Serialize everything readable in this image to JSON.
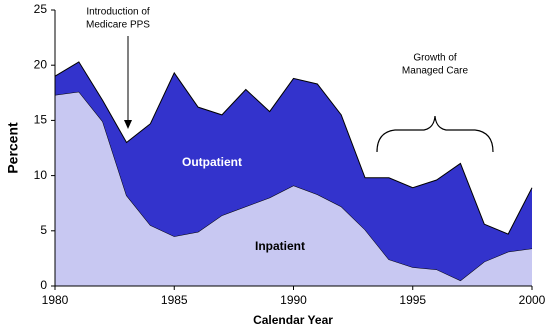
{
  "chart_data": {
    "type": "stacked-area",
    "x": [
      1980,
      1981,
      1982,
      1983,
      1984,
      1985,
      1986,
      1987,
      1988,
      1989,
      1990,
      1991,
      1992,
      1993,
      1994,
      1995,
      1996,
      1997,
      1998,
      1999,
      2000
    ],
    "series": [
      {
        "name": "Inpatient",
        "color": "#c8c8f2",
        "values": [
          17.3,
          17.6,
          14.9,
          8.2,
          5.5,
          4.5,
          4.9,
          6.4,
          7.2,
          8.0,
          9.1,
          8.3,
          7.2,
          5.1,
          2.4,
          1.7,
          1.5,
          0.5,
          2.2,
          3.1,
          3.4
        ]
      },
      {
        "name": "Outpatient",
        "color": "#3333cc",
        "values": [
          1.7,
          2.7,
          1.9,
          4.8,
          9.2,
          14.8,
          11.3,
          9.1,
          10.6,
          7.8,
          9.7,
          10.0,
          8.3,
          4.7,
          7.4,
          7.2,
          8.1,
          10.6,
          3.4,
          1.6,
          5.5
        ]
      }
    ],
    "xlim": [
      1980,
      2000
    ],
    "xticks": [
      1980,
      1985,
      1990,
      1995,
      2000
    ],
    "ylim": [
      0,
      25
    ],
    "yticks": [
      0,
      5,
      10,
      15,
      20,
      25
    ],
    "x_label": "Calendar Year",
    "y_label": "Percent",
    "annotations": [
      {
        "lines": [
          "Introduction of",
          "Medicare PPS"
        ]
      },
      {
        "lines": [
          "Growth of",
          "Managed Care"
        ]
      }
    ]
  }
}
